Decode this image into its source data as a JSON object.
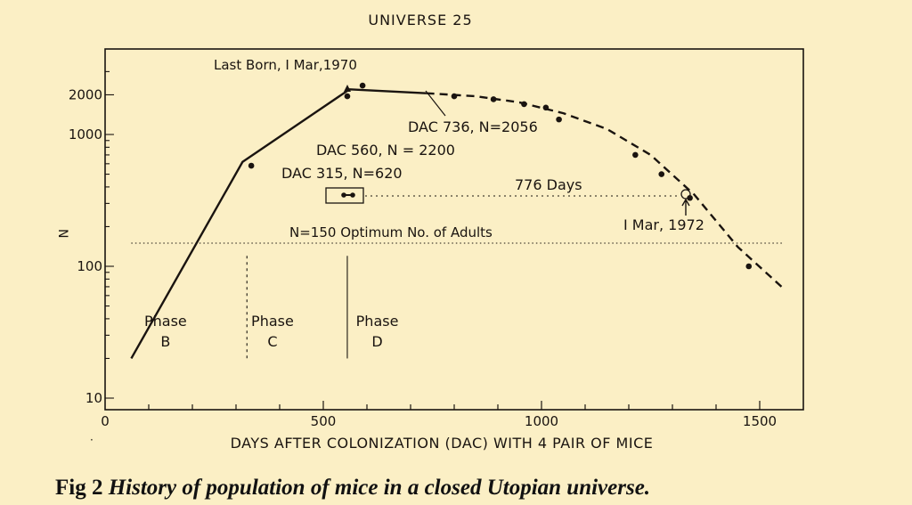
{
  "chart_data": {
    "type": "line",
    "title": "UNIVERSE 25",
    "xlabel": "DAYS AFTER COLONIZATION (DAC) WITH 4 PAIR OF MICE",
    "ylabel": "N",
    "xlim": [
      0,
      1600
    ],
    "ylim": [
      10,
      3000
    ],
    "yscale": "log",
    "xticks": [
      0,
      500,
      1000,
      1500
    ],
    "xtick_labels": [
      "0",
      "500",
      "1000",
      "1500"
    ],
    "yticks": [
      10,
      100,
      1000,
      2000
    ],
    "ytick_labels": [
      "10",
      "100",
      "1000",
      "2000"
    ],
    "series": [
      {
        "style": "solid",
        "x": [
          60,
          315,
          560,
          736
        ],
        "y": [
          20,
          620,
          2200,
          2056
        ]
      },
      {
        "style": "dashed",
        "x": [
          736,
          850,
          950,
          1050,
          1150,
          1250,
          1350,
          1450,
          1550
        ],
        "y": [
          2056,
          1950,
          1750,
          1450,
          1100,
          700,
          350,
          140,
          70
        ]
      },
      {
        "style": "points",
        "x": [
          335,
          555,
          590,
          800,
          890,
          960,
          1010,
          1040,
          1215,
          1275,
          1340,
          1475
        ],
        "y": [
          580,
          1950,
          2350,
          1950,
          1850,
          1700,
          1600,
          1300,
          700,
          500,
          330,
          100
        ]
      }
    ],
    "reference_lines": [
      {
        "y": 150,
        "x_range": [
          315,
          1545
        ],
        "label": "N=150 Optimum No. of Adults"
      }
    ],
    "phase_dividers": [
      {
        "x": 325,
        "y_range": [
          20,
          120
        ]
      },
      {
        "x": 555,
        "y_range": [
          20,
          120
        ]
      }
    ],
    "phases": [
      {
        "label": "Phase",
        "letter": "B",
        "x": 210
      },
      {
        "label": "Phase",
        "letter": "C",
        "x": 455
      },
      {
        "label": "Phase",
        "letter": "D",
        "x": 695
      }
    ],
    "annotations": {
      "last_born": "Last Born, I Mar,1970",
      "dac736": "DAC 736, N=2056",
      "dac560": "DAC 560, N = 2200",
      "dac315": "DAC 315, N=620",
      "days776": "776 Days",
      "mar1972": "I Mar, 1972"
    }
  },
  "caption": {
    "prefix": "Fig 2",
    "title": "History of population of mice in a closed Utopian universe."
  }
}
